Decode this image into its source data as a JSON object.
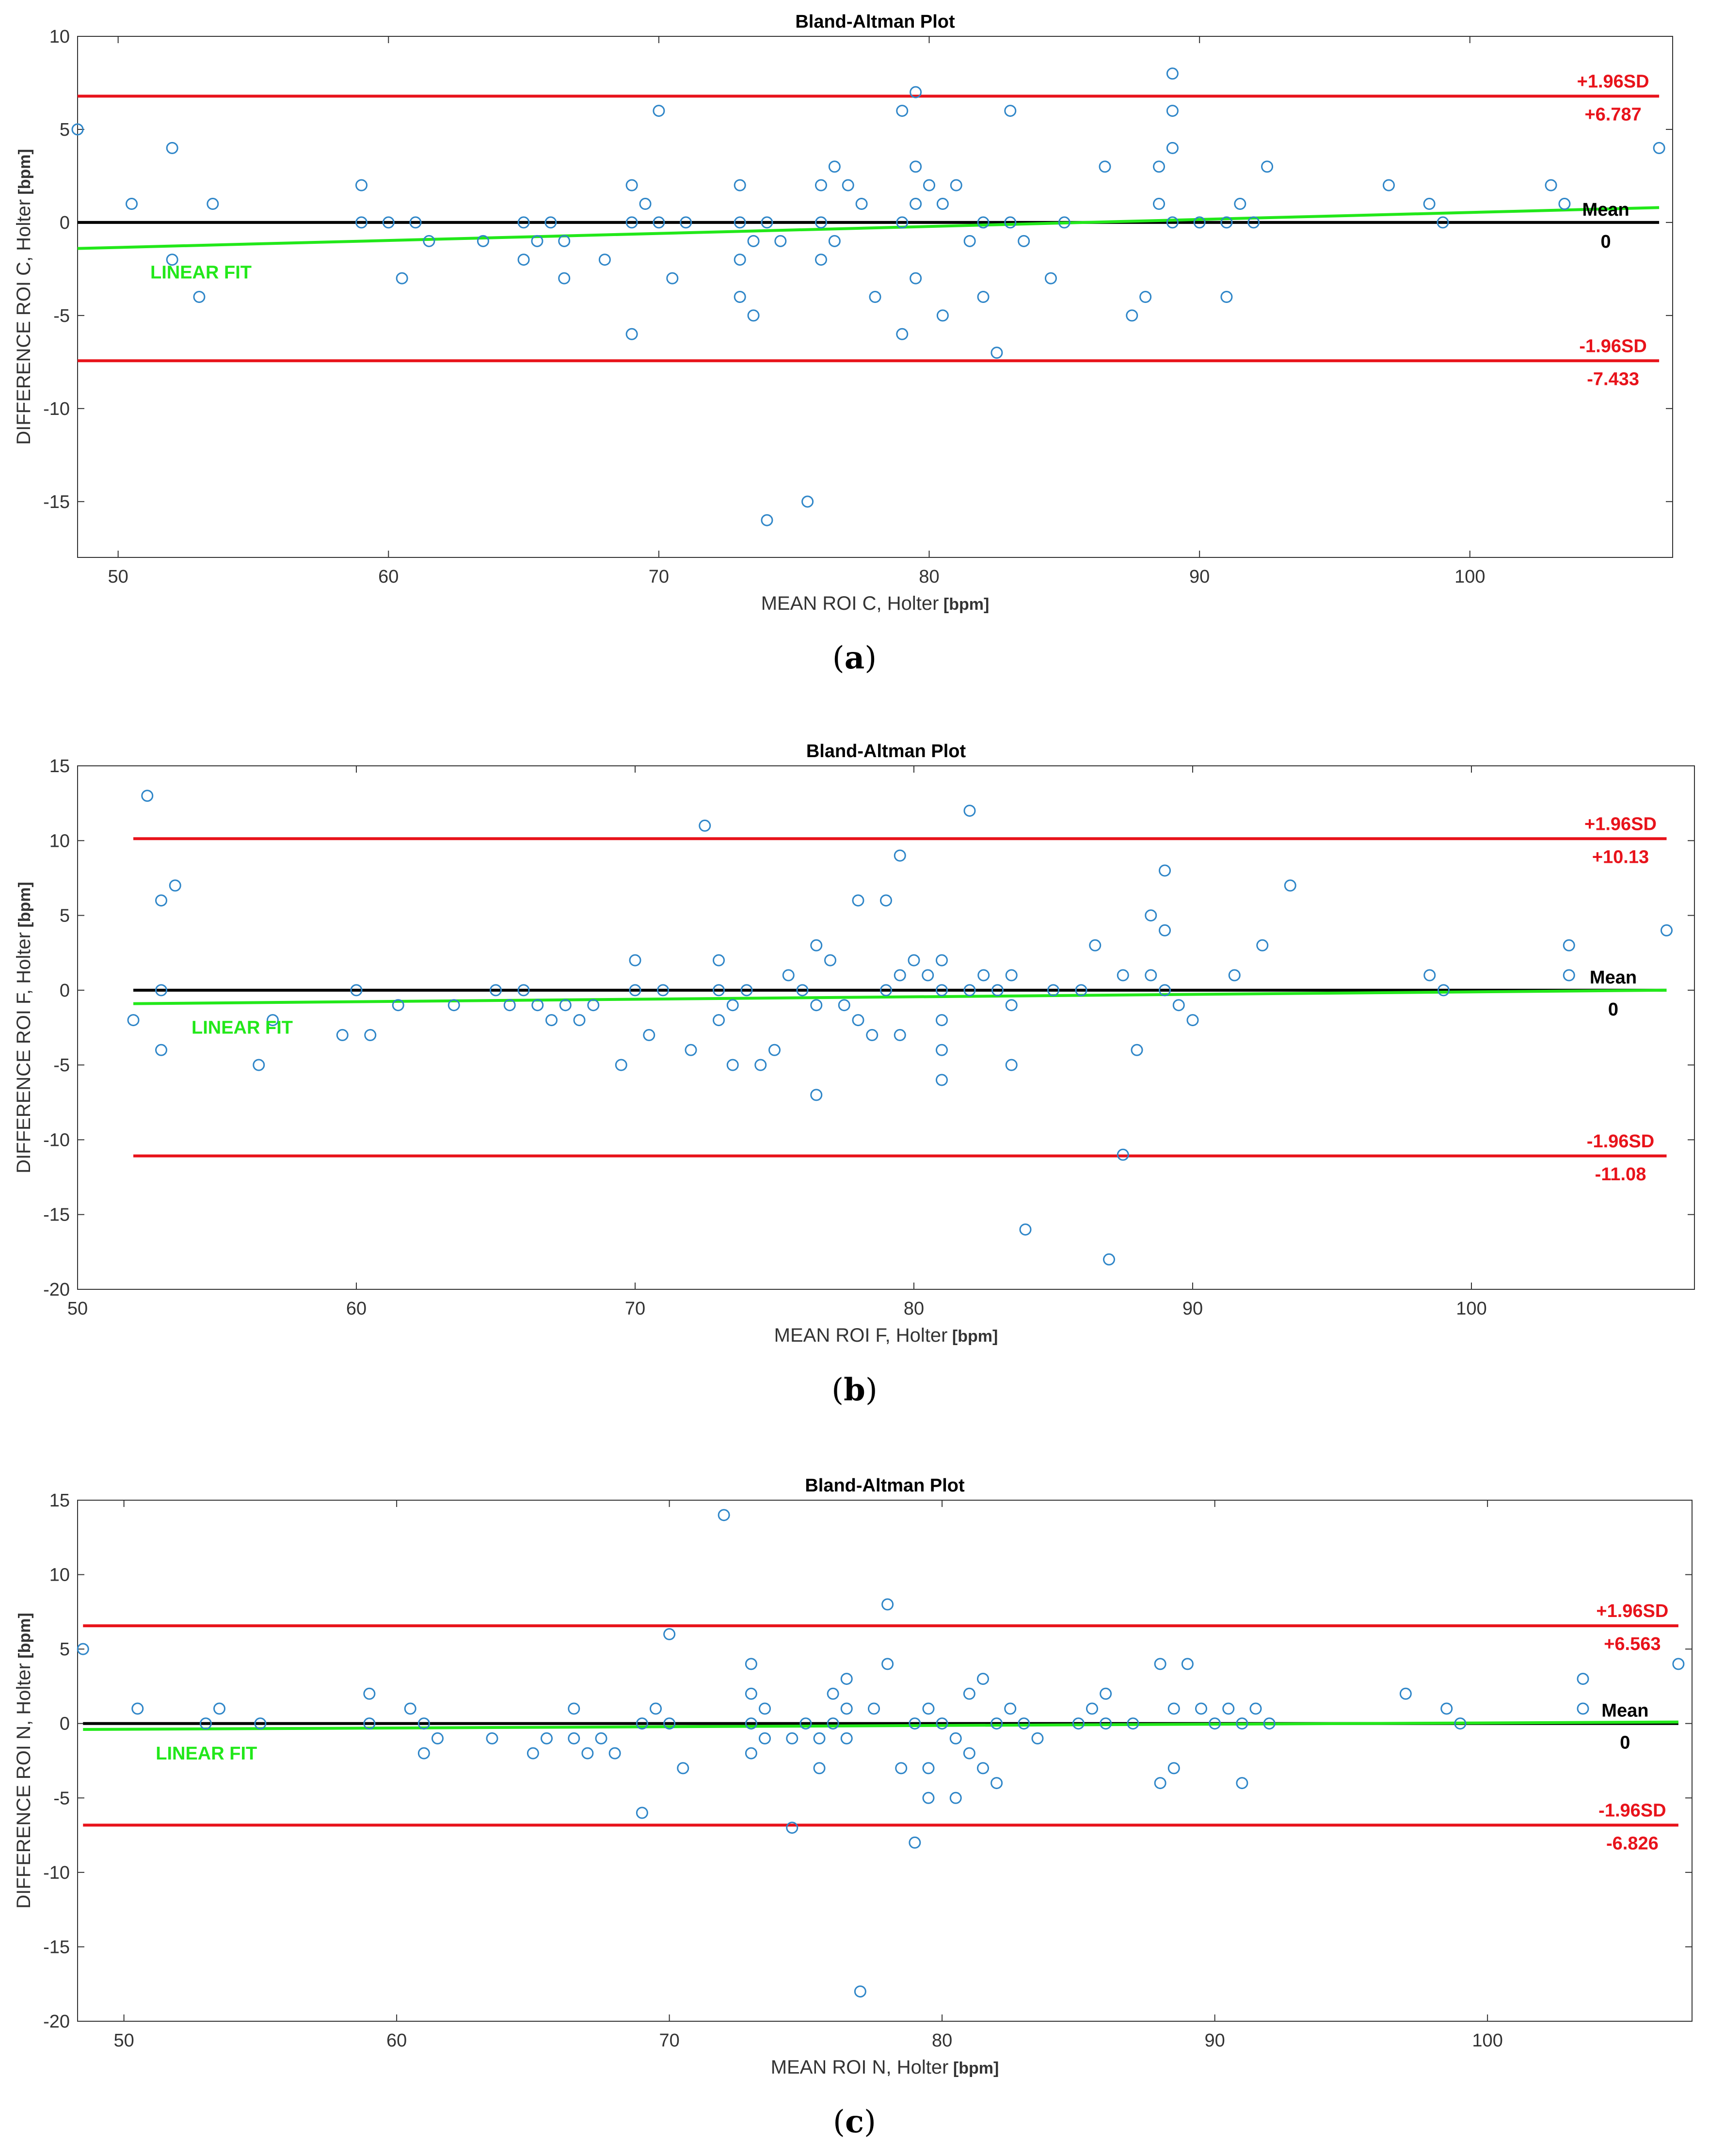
{
  "colors": {
    "points": "#2f86c8",
    "limits": "#e8131b",
    "mean": "#000000",
    "fit": "#22e81a",
    "axis": "#333333"
  },
  "chart_data": [
    {
      "type": "scatter",
      "panel": "a",
      "caption_letter": "a",
      "title": "Bland-Altman Plot",
      "xlabel_main": "MEAN ROI C, Holter",
      "xlabel_unit": "[bpm]",
      "ylabel_main": "DIFFERENCE ROI C, Holter",
      "ylabel_unit": "[bpm]",
      "xlim": [
        48.5,
        107.5
      ],
      "ylim": [
        -18,
        10
      ],
      "xticks": [
        50,
        60,
        70,
        80,
        90,
        100
      ],
      "yticks": [
        10,
        5,
        0,
        -5,
        -10,
        -15
      ],
      "upper_loa": 6.787,
      "upper_label": "+1.96SD",
      "upper_value": "+6.787",
      "lower_loa": -7.433,
      "lower_label": "-1.96SD",
      "lower_value": "-7.433",
      "mean": 0,
      "mean_label": "Mean",
      "mean_value": "0",
      "line_start": 48.5,
      "line_end": 107,
      "fit_label": "LINEAR FIT",
      "fit": [
        [
          48.5,
          -1.4
        ],
        [
          107,
          0.8
        ]
      ],
      "points": [
        [
          48.5,
          5
        ],
        [
          50.5,
          1
        ],
        [
          52,
          4
        ],
        [
          52,
          -2
        ],
        [
          53,
          -4
        ],
        [
          53.5,
          1
        ],
        [
          59,
          2
        ],
        [
          59,
          0
        ],
        [
          60,
          0
        ],
        [
          60.5,
          -3
        ],
        [
          61,
          0
        ],
        [
          61.5,
          -1
        ],
        [
          63.5,
          -1
        ],
        [
          65,
          0
        ],
        [
          65,
          -2
        ],
        [
          65.5,
          -1
        ],
        [
          66,
          0
        ],
        [
          66.5,
          -1
        ],
        [
          66.5,
          -3
        ],
        [
          68,
          -2
        ],
        [
          69,
          2
        ],
        [
          69,
          0
        ],
        [
          69,
          -6
        ],
        [
          69.5,
          1
        ],
        [
          70,
          6
        ],
        [
          70,
          0
        ],
        [
          70.5,
          -3
        ],
        [
          71,
          0
        ],
        [
          73,
          2
        ],
        [
          73,
          0
        ],
        [
          73,
          -2
        ],
        [
          73,
          -4
        ],
        [
          73.5,
          -1
        ],
        [
          73.5,
          -5
        ],
        [
          74,
          0
        ],
        [
          74,
          -16
        ],
        [
          74.5,
          -1
        ],
        [
          75.5,
          -15
        ],
        [
          76,
          2
        ],
        [
          76,
          0
        ],
        [
          76,
          -2
        ],
        [
          76.5,
          3
        ],
        [
          76.5,
          -1
        ],
        [
          77,
          2
        ],
        [
          77.5,
          1
        ],
        [
          78,
          -4
        ],
        [
          79,
          6
        ],
        [
          79,
          0
        ],
        [
          79,
          -6
        ],
        [
          79.5,
          7
        ],
        [
          79.5,
          3
        ],
        [
          79.5,
          1
        ],
        [
          79.5,
          -3
        ],
        [
          80,
          2
        ],
        [
          80.5,
          1
        ],
        [
          80.5,
          -5
        ],
        [
          81,
          2
        ],
        [
          81.5,
          -1
        ],
        [
          82,
          0
        ],
        [
          82,
          -4
        ],
        [
          82.5,
          -7
        ],
        [
          83,
          6
        ],
        [
          83,
          0
        ],
        [
          83.5,
          -1
        ],
        [
          84.5,
          -3
        ],
        [
          85,
          0
        ],
        [
          86.5,
          3
        ],
        [
          87.5,
          -5
        ],
        [
          88,
          -4
        ],
        [
          88.5,
          3
        ],
        [
          88.5,
          1
        ],
        [
          89,
          8
        ],
        [
          89,
          6
        ],
        [
          89,
          4
        ],
        [
          89,
          0
        ],
        [
          90,
          0
        ],
        [
          91,
          0
        ],
        [
          91,
          -4
        ],
        [
          91.5,
          1
        ],
        [
          92,
          0
        ],
        [
          92.5,
          3
        ],
        [
          97,
          2
        ],
        [
          98.5,
          1
        ],
        [
          99,
          0
        ],
        [
          103,
          2
        ],
        [
          103.5,
          1
        ],
        [
          107,
          4
        ]
      ]
    },
    {
      "type": "scatter",
      "panel": "b",
      "caption_letter": "b",
      "title": "Bland-Altman Plot",
      "xlabel_main": "MEAN ROI F, Holter",
      "xlabel_unit": "[bpm]",
      "ylabel_main": "DIFFERENCE ROI F, Holter",
      "ylabel_unit": "[bpm]",
      "xlim": [
        50,
        108
      ],
      "ylim": [
        -20,
        15
      ],
      "xticks": [
        50,
        60,
        70,
        80,
        90,
        100
      ],
      "yticks": [
        15,
        10,
        5,
        0,
        -5,
        -10,
        -15,
        -20
      ],
      "upper_loa": 10.13,
      "upper_label": "+1.96SD",
      "upper_value": "+10.13",
      "lower_loa": -11.08,
      "lower_label": "-1.96SD",
      "lower_value": "-11.08",
      "mean": 0,
      "mean_label": "Mean",
      "mean_value": "0",
      "line_start": 52,
      "line_end": 107,
      "fit_label": "LINEAR FIT",
      "fit": [
        [
          52,
          -0.9
        ],
        [
          107,
          0
        ]
      ],
      "points": [
        [
          52,
          -2
        ],
        [
          52.5,
          13
        ],
        [
          53,
          6
        ],
        [
          53,
          0
        ],
        [
          53,
          -4
        ],
        [
          53.5,
          7
        ],
        [
          56.5,
          -5
        ],
        [
          57,
          -2
        ],
        [
          59.5,
          -3
        ],
        [
          60,
          0
        ],
        [
          60.5,
          -3
        ],
        [
          61.5,
          -1
        ],
        [
          63.5,
          -1
        ],
        [
          65,
          0
        ],
        [
          65.5,
          -1
        ],
        [
          66,
          0
        ],
        [
          66.5,
          -1
        ],
        [
          67,
          -2
        ],
        [
          67.5,
          -1
        ],
        [
          68,
          -2
        ],
        [
          68.5,
          -1
        ],
        [
          69.5,
          -5
        ],
        [
          70,
          2
        ],
        [
          70,
          0
        ],
        [
          70.5,
          -3
        ],
        [
          71,
          0
        ],
        [
          72,
          -4
        ],
        [
          72.5,
          11
        ],
        [
          73,
          2
        ],
        [
          73,
          0
        ],
        [
          73,
          -2
        ],
        [
          73.5,
          -1
        ],
        [
          73.5,
          -5
        ],
        [
          74,
          0
        ],
        [
          74.5,
          -5
        ],
        [
          75,
          -4
        ],
        [
          75.5,
          1
        ],
        [
          76,
          0
        ],
        [
          76.5,
          3
        ],
        [
          76.5,
          -1
        ],
        [
          76.5,
          -7
        ],
        [
          77,
          2
        ],
        [
          77.5,
          -1
        ],
        [
          78,
          6
        ],
        [
          78,
          -2
        ],
        [
          78.5,
          -3
        ],
        [
          79,
          6
        ],
        [
          79,
          0
        ],
        [
          79.5,
          9
        ],
        [
          79.5,
          1
        ],
        [
          79.5,
          -3
        ],
        [
          80,
          2
        ],
        [
          80.5,
          1
        ],
        [
          81,
          2
        ],
        [
          81,
          0
        ],
        [
          81,
          -2
        ],
        [
          81,
          -4
        ],
        [
          81,
          -6
        ],
        [
          82,
          12
        ],
        [
          82,
          0
        ],
        [
          82.5,
          1
        ],
        [
          83,
          0
        ],
        [
          83.5,
          1
        ],
        [
          83.5,
          -1
        ],
        [
          83.5,
          -5
        ],
        [
          84,
          -16
        ],
        [
          85,
          0
        ],
        [
          86,
          0
        ],
        [
          86.5,
          3
        ],
        [
          87,
          -18
        ],
        [
          87.5,
          1
        ],
        [
          87.5,
          -11
        ],
        [
          88,
          -4
        ],
        [
          88.5,
          5
        ],
        [
          88.5,
          1
        ],
        [
          89,
          8
        ],
        [
          89,
          4
        ],
        [
          89,
          0
        ],
        [
          89.5,
          -1
        ],
        [
          90,
          -2
        ],
        [
          91.5,
          1
        ],
        [
          92.5,
          3
        ],
        [
          93.5,
          7
        ],
        [
          98.5,
          1
        ],
        [
          99,
          0
        ],
        [
          103.5,
          3
        ],
        [
          103.5,
          1
        ],
        [
          107,
          4
        ]
      ]
    },
    {
      "type": "scatter",
      "panel": "c",
      "caption_letter": "c",
      "title": "Bland-Altman Plot",
      "xlabel_main": "MEAN ROI N,",
      "xlabel_sub": "Holter",
      "xlabel_unit": "[bpm]",
      "ylabel_main": "DIFFERENCE ROI N, Holter",
      "ylabel_unit": "[bpm]",
      "xlim": [
        48.3,
        107.5
      ],
      "ylim": [
        -20,
        15
      ],
      "xticks": [
        50,
        60,
        70,
        80,
        90,
        100
      ],
      "yticks": [
        15,
        10,
        5,
        0,
        -5,
        -10,
        -15,
        -20
      ],
      "upper_loa": 6.563,
      "upper_label": "+1.96SD",
      "upper_value": "+6.563",
      "lower_loa": -6.826,
      "lower_label": "-1.96SD",
      "lower_value": "-6.826",
      "mean": 0,
      "mean_label": "Mean",
      "mean_value": "0",
      "line_start": 48.5,
      "line_end": 107,
      "fit_label": "LINEAR FIT",
      "fit": [
        [
          48.5,
          -0.4
        ],
        [
          107,
          0.1
        ]
      ],
      "points": [
        [
          48.5,
          5
        ],
        [
          50.5,
          1
        ],
        [
          53,
          0
        ],
        [
          53.5,
          1
        ],
        [
          55,
          0
        ],
        [
          59,
          2
        ],
        [
          59,
          0
        ],
        [
          60.5,
          1
        ],
        [
          61,
          0
        ],
        [
          61,
          -2
        ],
        [
          61.5,
          -1
        ],
        [
          63.5,
          -1
        ],
        [
          65,
          -2
        ],
        [
          65.5,
          -1
        ],
        [
          66.5,
          1
        ],
        [
          66.5,
          -1
        ],
        [
          67,
          -2
        ],
        [
          67.5,
          -1
        ],
        [
          68,
          -2
        ],
        [
          69,
          0
        ],
        [
          69,
          -6
        ],
        [
          69.5,
          1
        ],
        [
          70,
          6
        ],
        [
          70,
          0
        ],
        [
          70.5,
          -3
        ],
        [
          72,
          14
        ],
        [
          73,
          4
        ],
        [
          73,
          2
        ],
        [
          73,
          0
        ],
        [
          73,
          -2
        ],
        [
          73.5,
          1
        ],
        [
          73.5,
          -1
        ],
        [
          74.5,
          -1
        ],
        [
          74.5,
          -7
        ],
        [
          75,
          0
        ],
        [
          75.5,
          -1
        ],
        [
          75.5,
          -3
        ],
        [
          76,
          2
        ],
        [
          76,
          0
        ],
        [
          76.5,
          3
        ],
        [
          76.5,
          1
        ],
        [
          76.5,
          -1
        ],
        [
          77,
          -18
        ],
        [
          77.5,
          1
        ],
        [
          78,
          8
        ],
        [
          78,
          4
        ],
        [
          78.5,
          -3
        ],
        [
          79,
          0
        ],
        [
          79,
          -8
        ],
        [
          79.5,
          1
        ],
        [
          79.5,
          -3
        ],
        [
          79.5,
          -5
        ],
        [
          80,
          0
        ],
        [
          80.5,
          -1
        ],
        [
          80.5,
          -5
        ],
        [
          81,
          2
        ],
        [
          81,
          -2
        ],
        [
          81.5,
          3
        ],
        [
          81.5,
          -3
        ],
        [
          82,
          0
        ],
        [
          82,
          -4
        ],
        [
          82.5,
          1
        ],
        [
          83,
          0
        ],
        [
          83.5,
          -1
        ],
        [
          85,
          0
        ],
        [
          85.5,
          1
        ],
        [
          86,
          2
        ],
        [
          86,
          0
        ],
        [
          87,
          0
        ],
        [
          88,
          4
        ],
        [
          88,
          -4
        ],
        [
          88.5,
          1
        ],
        [
          88.5,
          -3
        ],
        [
          89,
          4
        ],
        [
          89.5,
          1
        ],
        [
          90,
          0
        ],
        [
          90.5,
          1
        ],
        [
          91,
          0
        ],
        [
          91,
          -4
        ],
        [
          91.5,
          1
        ],
        [
          92,
          0
        ],
        [
          97,
          2
        ],
        [
          98.5,
          1
        ],
        [
          99,
          0
        ],
        [
          103.5,
          3
        ],
        [
          103.5,
          1
        ],
        [
          107,
          4
        ]
      ]
    }
  ]
}
